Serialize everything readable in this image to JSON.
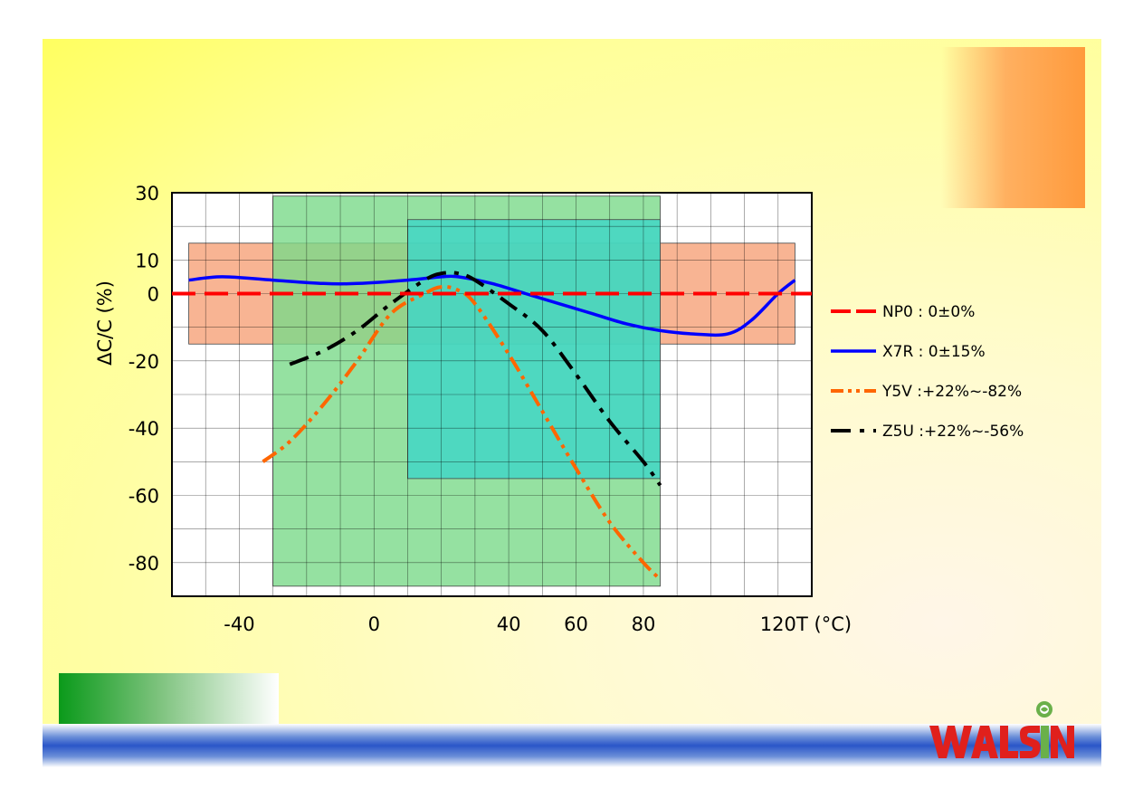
{
  "chart_data": {
    "type": "line",
    "xlabel": "T (°C)",
    "ylabel": "ΔC/C (%)",
    "xlim": [
      -60,
      130
    ],
    "ylim": [
      -90,
      30
    ],
    "x_ticks": [
      {
        "value": -40,
        "label": "-40"
      },
      {
        "value": 0,
        "label": "0"
      },
      {
        "value": 40,
        "label": "40"
      },
      {
        "value": 60,
        "label": "60"
      },
      {
        "value": 80,
        "label": "80"
      },
      {
        "value": 120,
        "label": "120"
      }
    ],
    "y_ticks": [
      {
        "value": 30,
        "label": "30"
      },
      {
        "value": 10,
        "label": "10"
      },
      {
        "value": 0,
        "label": "0"
      },
      {
        "value": -20,
        "label": "-20"
      },
      {
        "value": -40,
        "label": "-40"
      },
      {
        "value": -60,
        "label": "-60"
      },
      {
        "value": -80,
        "label": "-80"
      }
    ],
    "grid": true,
    "legend_position": "right",
    "regions": [
      {
        "x": [
          -55,
          125
        ],
        "y": [
          -15,
          15
        ],
        "color": "#f7a780"
      },
      {
        "x": [
          -30,
          85
        ],
        "y": [
          -87,
          29
        ],
        "color": "#7ad98a"
      },
      {
        "x": [
          10,
          85
        ],
        "y": [
          -55,
          22
        ],
        "color": "#3cd6c8"
      }
    ],
    "series": [
      {
        "name": "NP0 : 0±0%",
        "color": "#ff0000",
        "dash": "long-dash",
        "x": [
          -60,
          -40,
          -20,
          0,
          20,
          40,
          60,
          80,
          100,
          120,
          130
        ],
        "y": [
          0,
          0,
          0,
          0,
          0,
          0,
          0,
          0,
          0,
          0,
          0
        ]
      },
      {
        "name": "X7R : 0±15%",
        "color": "#0000ff",
        "dash": "solid",
        "x": [
          -55,
          -45,
          -30,
          -15,
          -5,
          10,
          20,
          25,
          35,
          45,
          55,
          65,
          75,
          85,
          95,
          105,
          112,
          120,
          125
        ],
        "y": [
          4,
          5,
          4,
          3,
          3,
          4,
          5,
          5,
          3,
          0,
          -3,
          -6,
          -9,
          -11,
          -12,
          -12,
          -8,
          0,
          4
        ]
      },
      {
        "name": "Y5V :+22%~-82%",
        "color": "#ff6600",
        "dash": "dash-dot-dot",
        "x": [
          -33,
          -25,
          -15,
          -5,
          5,
          15,
          20,
          25,
          30,
          40,
          50,
          60,
          70,
          80,
          85
        ],
        "y": [
          -50,
          -44,
          -33,
          -20,
          -6,
          0,
          2,
          1,
          -3,
          -18,
          -35,
          -52,
          -68,
          -80,
          -85
        ]
      },
      {
        "name": "Z5U :+22%~-56%",
        "color": "#000000",
        "dash": "dash-dot",
        "x": [
          -25,
          -15,
          -5,
          5,
          15,
          20,
          25,
          30,
          40,
          50,
          60,
          70,
          80,
          85
        ],
        "y": [
          -21,
          -17,
          -11,
          -3,
          4,
          6,
          6,
          4,
          -3,
          -11,
          -24,
          -38,
          -50,
          -57
        ]
      }
    ]
  }
}
